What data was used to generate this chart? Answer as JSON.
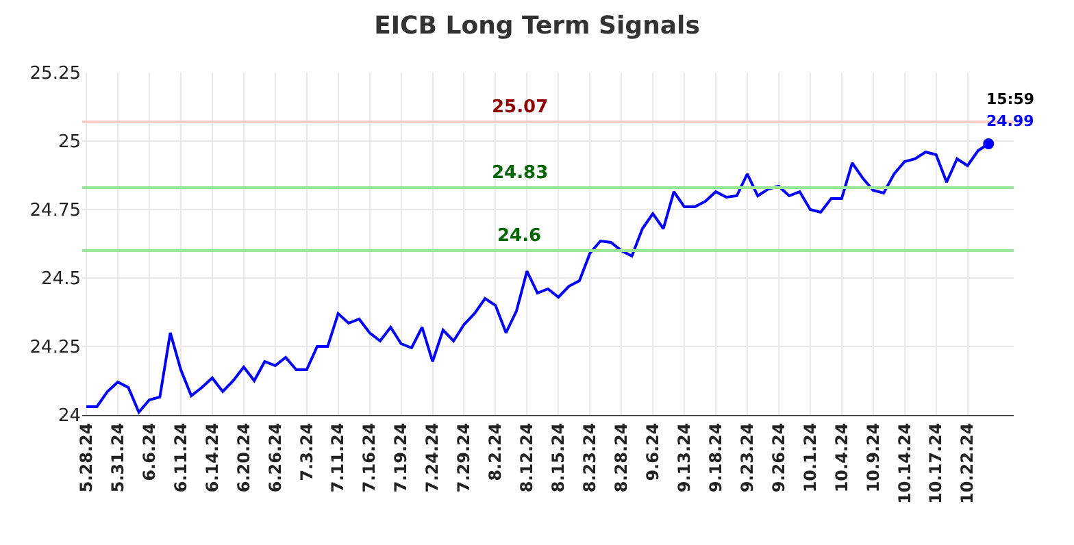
{
  "chart_data": {
    "type": "line",
    "title": "EICB Long Term Signals",
    "categories": [
      "5.28.24",
      null,
      null,
      "5.31.24",
      null,
      null,
      "6.6.24",
      null,
      null,
      "6.11.24",
      null,
      null,
      "6.14.24",
      null,
      null,
      "6.20.24",
      null,
      null,
      "6.26.24",
      null,
      null,
      "7.3.24",
      null,
      null,
      "7.11.24",
      null,
      null,
      "7.16.24",
      null,
      null,
      "7.19.24",
      null,
      null,
      "7.24.24",
      null,
      null,
      "7.29.24",
      null,
      null,
      "8.2.24",
      null,
      null,
      "8.12.24",
      null,
      null,
      "8.15.24",
      null,
      null,
      "8.23.24",
      null,
      null,
      "8.28.24",
      null,
      null,
      "9.6.24",
      null,
      null,
      "9.13.24",
      null,
      null,
      "9.18.24",
      null,
      null,
      "9.23.24",
      null,
      null,
      "9.26.24",
      null,
      null,
      "10.1.24",
      null,
      null,
      "10.4.24",
      null,
      null,
      "10.9.24",
      null,
      null,
      "10.14.24",
      null,
      null,
      "10.17.24",
      null,
      null,
      "10.22.24",
      null,
      null
    ],
    "series": [
      {
        "color": "#0000ff",
        "values": [
          24.03,
          24.03,
          24.085,
          24.12,
          24.1,
          24.01,
          24.055,
          24.065,
          24.3,
          24.165,
          24.07,
          24.1,
          24.135,
          24.085,
          24.125,
          24.175,
          24.125,
          24.195,
          24.18,
          24.21,
          24.165,
          24.165,
          24.25,
          24.25,
          24.37,
          24.335,
          24.35,
          24.3,
          24.27,
          24.32,
          24.26,
          24.245,
          24.32,
          24.195,
          24.31,
          24.27,
          24.33,
          24.37,
          24.425,
          24.4,
          24.3,
          24.38,
          24.525,
          24.445,
          24.46,
          24.43,
          24.47,
          24.49,
          24.59,
          24.635,
          24.63,
          24.6,
          24.58,
          24.68,
          24.735,
          24.68,
          24.815,
          24.76,
          24.76,
          24.78,
          24.815,
          24.795,
          24.8,
          24.88,
          24.8,
          24.825,
          24.835,
          24.8,
          24.815,
          24.75,
          24.74,
          24.79,
          24.79,
          24.92,
          24.865,
          24.82,
          24.81,
          24.88,
          24.925,
          24.935,
          24.96,
          24.95,
          24.85,
          24.935,
          24.91,
          24.965,
          24.99
        ]
      },
      {
        "type": "scatter",
        "color": "#0000ff",
        "values": [
          null,
          null,
          null,
          null,
          null,
          null,
          null,
          null,
          null,
          null,
          null,
          null,
          null,
          null,
          null,
          null,
          null,
          null,
          null,
          null,
          null,
          null,
          null,
          null,
          null,
          null,
          null,
          null,
          null,
          null,
          null,
          null,
          null,
          null,
          null,
          null,
          null,
          null,
          null,
          null,
          null,
          null,
          null,
          null,
          null,
          null,
          null,
          null,
          null,
          null,
          null,
          null,
          null,
          null,
          null,
          null,
          null,
          null,
          null,
          null,
          null,
          null,
          null,
          null,
          null,
          null,
          null,
          null,
          null,
          null,
          null,
          null,
          null,
          null,
          null,
          null,
          null,
          null,
          null,
          null,
          null,
          null,
          null,
          null,
          null,
          null,
          24.99
        ]
      }
    ],
    "ylim": [
      24,
      25.25
    ],
    "yticks": [
      24,
      24.25,
      24.5,
      24.75,
      25,
      25.25
    ],
    "grid": true,
    "legend": false,
    "ref_lines": [
      {
        "axis": "y",
        "value": 25.07,
        "label": "25.07",
        "color": "#ffcccc"
      },
      {
        "axis": "y",
        "value": 24.83,
        "label": "24.83",
        "color": "#99e699"
      },
      {
        "axis": "y",
        "value": 24.6,
        "label": "24.6",
        "color": "#99e699"
      }
    ],
    "annotations": [
      "15:59",
      "24.99"
    ]
  }
}
